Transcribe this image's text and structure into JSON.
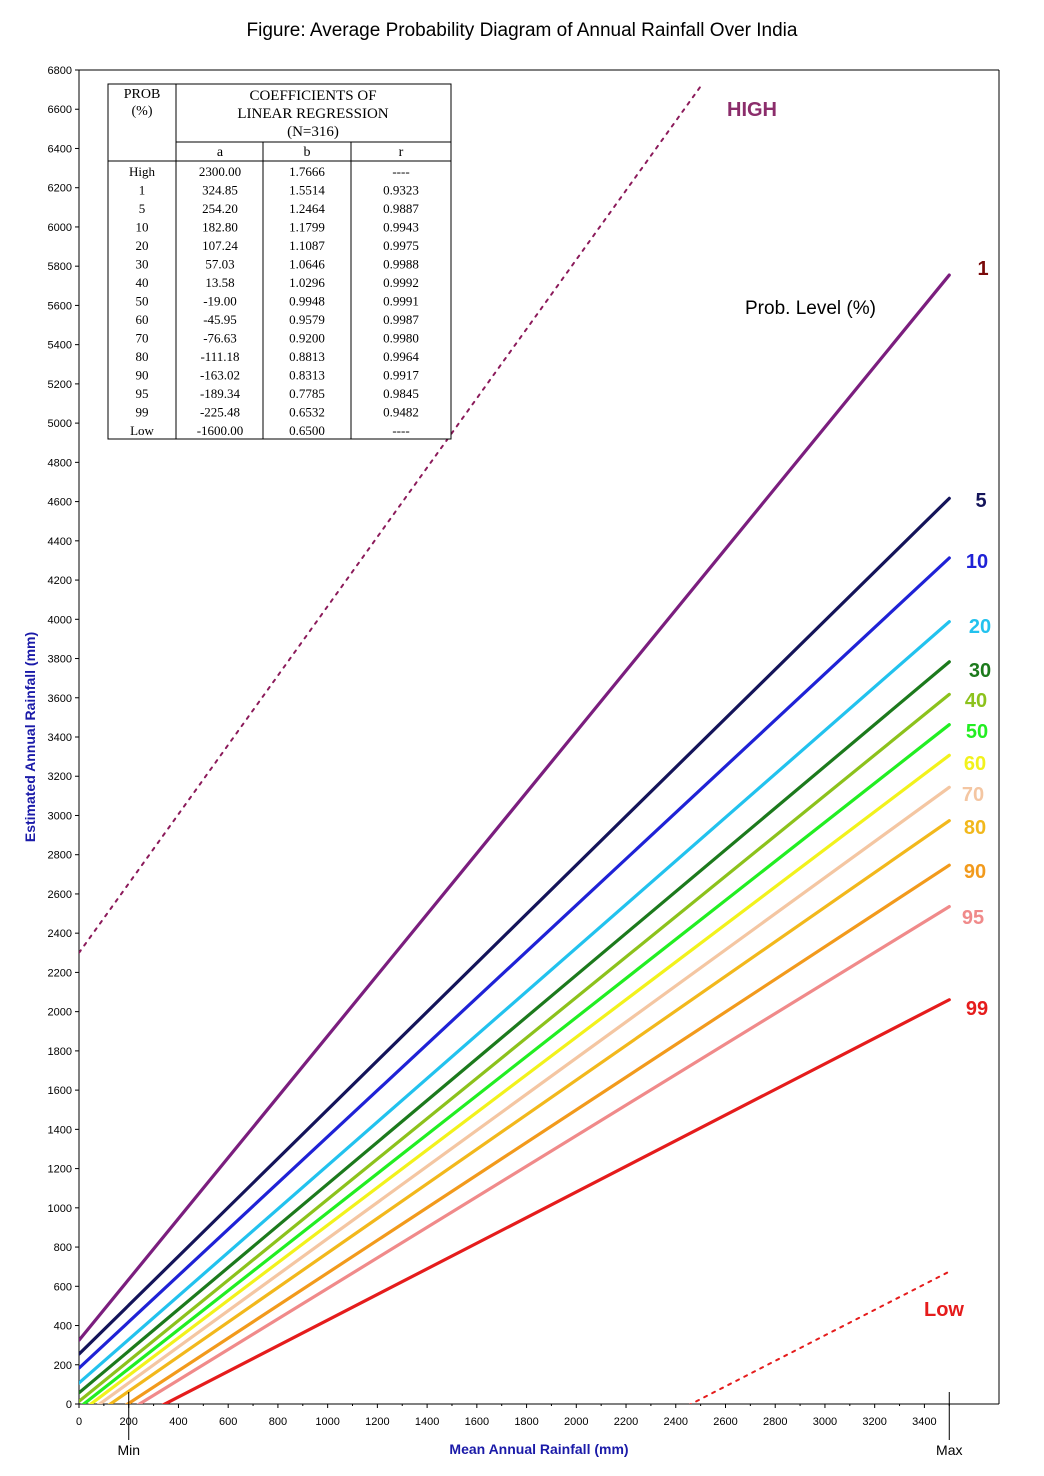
{
  "title": "Figure: Average Probability Diagram of Annual Rainfall Over India",
  "chart_data": {
    "type": "line",
    "xlabel": "Mean Annual Rainfall (mm)",
    "ylabel": "Estimated Annual Rainfall (mm)",
    "xlim": [
      0,
      3700
    ],
    "ylim": [
      0,
      6800
    ],
    "x_ticks": [
      0,
      200,
      400,
      600,
      800,
      1000,
      1200,
      1400,
      1600,
      1800,
      2000,
      2200,
      2400,
      2600,
      2800,
      3000,
      3200,
      3400
    ],
    "y_ticks": [
      0,
      200,
      400,
      600,
      800,
      1000,
      1200,
      1400,
      1600,
      1800,
      2000,
      2200,
      2400,
      2600,
      2800,
      3000,
      3200,
      3400,
      3600,
      3800,
      4000,
      4200,
      4400,
      4600,
      4800,
      5000,
      5200,
      5400,
      5600,
      5800,
      6000,
      6200,
      6400,
      6600,
      6800
    ],
    "min_marker": {
      "x": 200,
      "label": "Min"
    },
    "max_marker": {
      "x": 3500,
      "label": "Max"
    },
    "legend_title": "Prob. Level (%)",
    "series": [
      {
        "name": "HIGH",
        "a": 2300.0,
        "b": 1.7666,
        "x_range": [
          0,
          2500
        ],
        "style": "dotted",
        "color": "#8b1a5a",
        "label_color": "#8b2d6b"
      },
      {
        "name": "1",
        "a": 324.85,
        "b": 1.5514,
        "x_range": [
          0,
          3500
        ],
        "style": "solid",
        "color": "#7b1e7e",
        "label_color": "#7a0a0a"
      },
      {
        "name": "5",
        "a": 254.2,
        "b": 1.2464,
        "x_range": [
          0,
          3500
        ],
        "style": "solid",
        "color": "#14145a",
        "label_color": "#14145a"
      },
      {
        "name": "10",
        "a": 182.8,
        "b": 1.1799,
        "x_range": [
          0,
          3500
        ],
        "style": "solid",
        "color": "#1f22d6",
        "label_color": "#1f22d6"
      },
      {
        "name": "20",
        "a": 107.24,
        "b": 1.1087,
        "x_range": [
          0,
          3500
        ],
        "style": "solid",
        "color": "#22c2ee",
        "label_color": "#22c2ee"
      },
      {
        "name": "30",
        "a": 57.03,
        "b": 1.0646,
        "x_range": [
          0,
          3500
        ],
        "style": "solid",
        "color": "#1c7a1c",
        "label_color": "#1c7a1c"
      },
      {
        "name": "40",
        "a": 13.58,
        "b": 1.0296,
        "x_range": [
          0,
          3500
        ],
        "style": "solid",
        "color": "#8cc21c",
        "label_color": "#8cc21c"
      },
      {
        "name": "50",
        "a": -19.0,
        "b": 0.9948,
        "x_range": [
          0,
          3500
        ],
        "style": "solid",
        "color": "#22ee22",
        "label_color": "#22ee22"
      },
      {
        "name": "60",
        "a": -45.95,
        "b": 0.9579,
        "x_range": [
          0,
          3500
        ],
        "style": "solid",
        "color": "#f2f21c",
        "label_color": "#f2f21c"
      },
      {
        "name": "70",
        "a": -76.63,
        "b": 0.92,
        "x_range": [
          0,
          3500
        ],
        "style": "solid",
        "color": "#f4c6a2",
        "label_color": "#f4c6a2"
      },
      {
        "name": "80",
        "a": -111.18,
        "b": 0.8813,
        "x_range": [
          0,
          3500
        ],
        "style": "solid",
        "color": "#f2b81c",
        "label_color": "#f2b81c"
      },
      {
        "name": "90",
        "a": -163.02,
        "b": 0.8313,
        "x_range": [
          0,
          3500
        ],
        "style": "solid",
        "color": "#f29a1c",
        "label_color": "#f29a1c"
      },
      {
        "name": "95",
        "a": -189.34,
        "b": 0.7785,
        "x_range": [
          0,
          3500
        ],
        "style": "solid",
        "color": "#f08a8a",
        "label_color": "#f08a8a"
      },
      {
        "name": "99",
        "a": -225.48,
        "b": 0.6532,
        "x_range": [
          0,
          3500
        ],
        "style": "solid",
        "color": "#e51c1c",
        "label_color": "#e51c1c"
      },
      {
        "name": "Low",
        "a": -1600.0,
        "b": 0.65,
        "x_range": [
          2450,
          3500
        ],
        "style": "dotted",
        "color": "#e51c1c",
        "label_color": "#e51c1c"
      }
    ]
  },
  "table": {
    "prob_header_line1": "PROB",
    "prob_header_line2": "(%)",
    "coef_header_line1": "COEFFICIENTS OF",
    "coef_header_line2": "LINEAR REGRESSION",
    "coef_header_line3": "(N=316)",
    "col_a": "a",
    "col_b": "b",
    "col_r": "r",
    "rows": [
      {
        "prob": "High",
        "a": "2300.00",
        "b": "1.7666",
        "r": "----"
      },
      {
        "prob": "1",
        "a": "324.85",
        "b": "1.5514",
        "r": "0.9323"
      },
      {
        "prob": "5",
        "a": "254.20",
        "b": "1.2464",
        "r": "0.9887"
      },
      {
        "prob": "10",
        "a": "182.80",
        "b": "1.1799",
        "r": "0.9943"
      },
      {
        "prob": "20",
        "a": "107.24",
        "b": "1.1087",
        "r": "0.9975"
      },
      {
        "prob": "30",
        "a": "57.03",
        "b": "1.0646",
        "r": "0.9988"
      },
      {
        "prob": "40",
        "a": "13.58",
        "b": "1.0296",
        "r": "0.9992"
      },
      {
        "prob": "50",
        "a": "-19.00",
        "b": "0.9948",
        "r": "0.9991"
      },
      {
        "prob": "60",
        "a": "-45.95",
        "b": "0.9579",
        "r": "0.9987"
      },
      {
        "prob": "70",
        "a": "-76.63",
        "b": "0.9200",
        "r": "0.9980"
      },
      {
        "prob": "80",
        "a": "-111.18",
        "b": "0.8813",
        "r": "0.9964"
      },
      {
        "prob": "90",
        "a": "-163.02",
        "b": "0.8313",
        "r": "0.9917"
      },
      {
        "prob": "95",
        "a": "-189.34",
        "b": "0.7785",
        "r": "0.9845"
      },
      {
        "prob": "99",
        "a": "-225.48",
        "b": "0.6532",
        "r": "0.9482"
      },
      {
        "prob": "Low",
        "a": "-1600.00",
        "b": "0.6500",
        "r": "----"
      }
    ]
  }
}
